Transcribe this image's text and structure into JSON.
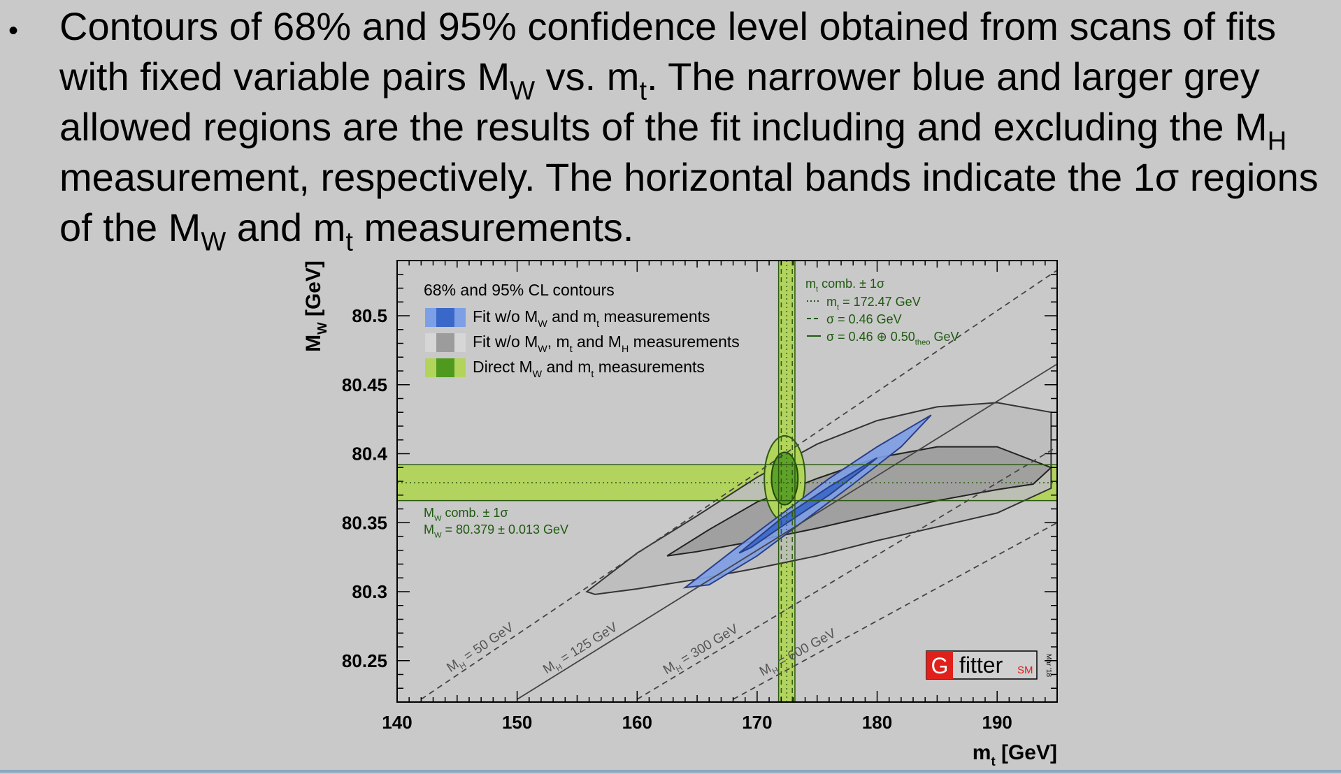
{
  "slide": {
    "bullet": "•",
    "caption": {
      "p1": "Contours of 68% and 95% confidence level obtained from scans of fits with fixed variable pairs M",
      "s1": "W",
      "p2": " vs. m",
      "s2": "t",
      "p3": ". The narrower blue and larger grey allowed regions are the results of the fit including and excluding the M",
      "s3": "H",
      "p4": " measurement, respectively. The horizontal bands indicate the 1σ regions of the M",
      "s4": "W",
      "p5": " and m",
      "s5": "t",
      "p6": " measurements."
    }
  },
  "colors": {
    "background": "#c9c9c9",
    "blue_outer": "#7d9fe6",
    "blue_inner": "#3a68c8",
    "grey_outer": "#bdbdbd",
    "grey_inner": "#9c9c9c",
    "green_light": "#b2d45a",
    "green_dark": "#4f9a1e",
    "green_text": "#1f5a10",
    "contour_line": "#2a3f8a",
    "bottom_rule": "#8aa7c2"
  },
  "chart_data": {
    "type": "contour",
    "xlabel": {
      "main": "m",
      "sub": "t",
      "unit": " [GeV]"
    },
    "ylabel": {
      "main": "M",
      "sub": "W",
      "unit": " [GeV]"
    },
    "xlim": [
      140,
      195
    ],
    "ylim": [
      80.22,
      80.54
    ],
    "x_ticks": [
      140,
      150,
      160,
      170,
      180,
      190
    ],
    "y_ticks": [
      80.25,
      80.3,
      80.35,
      80.4,
      80.45,
      80.5
    ],
    "y_tick_labels": [
      "80.25",
      "80.3",
      "80.35",
      "80.4",
      "80.45",
      "80.5"
    ],
    "legend": {
      "title": "68% and 95% CL contours",
      "entries": [
        {
          "kind": "blue",
          "parts": [
            "Fit w/o M",
            "W",
            " and m",
            "t",
            " measurements"
          ]
        },
        {
          "kind": "grey",
          "parts": [
            "Fit w/o M",
            "W",
            ", m",
            "t",
            " and M",
            "H",
            " measurements"
          ]
        },
        {
          "kind": "green",
          "parts": [
            "Direct M",
            "W",
            " and m",
            "t",
            " measurements"
          ]
        }
      ]
    },
    "mt_box": {
      "line1": [
        "m",
        "t",
        " comb. ± 1σ"
      ],
      "line2": [
        "m",
        "t",
        " = 172.47 GeV"
      ],
      "line3": "σ = 0.46 GeV",
      "line4": [
        "σ = 0.46 ⊕ 0.50",
        "theo",
        " GeV"
      ]
    },
    "mw_box": {
      "line1": [
        "M",
        "W",
        " comb. ± 1σ"
      ],
      "line2": [
        "M",
        "W",
        " = 80.379 ± 0.013 GeV"
      ]
    },
    "mt_measurement": {
      "central": 172.47,
      "sigma_exp": 0.46,
      "sigma_tot": 0.68
    },
    "mw_measurement": {
      "central": 80.379,
      "sigma": 0.013
    },
    "mh_lines": [
      {
        "label": "M",
        "sub": "H",
        "value": " = 50 GeV",
        "style": "dashed",
        "from": [
          142,
          80.222
        ],
        "to": [
          195,
          80.533
        ]
      },
      {
        "label": "M",
        "sub": "H",
        "value": " = 125 GeV",
        "style": "solid",
        "from": [
          150,
          80.222
        ],
        "to": [
          195,
          80.465
        ]
      },
      {
        "label": "M",
        "sub": "H",
        "value": " = 300 GeV",
        "style": "dashed",
        "from": [
          160,
          80.222
        ],
        "to": [
          195,
          80.405
        ]
      },
      {
        "label": "M",
        "sub": "H",
        "value": " = 600 GeV",
        "style": "dashed",
        "from": [
          168,
          80.222
        ],
        "to": [
          195,
          80.35
        ]
      }
    ],
    "contours": {
      "grey_95": [
        [
          155.8,
          80.3
        ],
        [
          160,
          80.328
        ],
        [
          165,
          80.355
        ],
        [
          170,
          80.383
        ],
        [
          175,
          80.407
        ],
        [
          180,
          80.424
        ],
        [
          185,
          80.434
        ],
        [
          190,
          80.437
        ],
        [
          194.5,
          80.43
        ],
        [
          194.5,
          80.375
        ],
        [
          190,
          80.357
        ],
        [
          185,
          80.347
        ],
        [
          180,
          80.337
        ],
        [
          175,
          80.326
        ],
        [
          170,
          80.317
        ],
        [
          165,
          80.309
        ],
        [
          160,
          80.302
        ],
        [
          156.5,
          80.298
        ]
      ],
      "grey_68": [
        [
          162.5,
          80.326
        ],
        [
          166,
          80.345
        ],
        [
          170,
          80.365
        ],
        [
          175,
          80.382
        ],
        [
          180,
          80.397
        ],
        [
          185,
          80.405
        ],
        [
          190,
          80.405
        ],
        [
          194.5,
          80.39
        ],
        [
          193,
          80.378
        ],
        [
          190,
          80.374
        ],
        [
          185,
          80.366
        ],
        [
          180,
          80.356
        ],
        [
          175,
          80.346
        ],
        [
          170,
          80.337
        ],
        [
          165,
          80.329
        ],
        [
          162.5,
          80.326
        ]
      ],
      "blue_95": [
        [
          164,
          80.303
        ],
        [
          168,
          80.33
        ],
        [
          172,
          80.356
        ],
        [
          176,
          80.382
        ],
        [
          180,
          80.405
        ],
        [
          184.5,
          80.428
        ],
        [
          182,
          80.405
        ],
        [
          178,
          80.378
        ],
        [
          174,
          80.352
        ],
        [
          170,
          80.326
        ],
        [
          166,
          80.305
        ],
        [
          164,
          80.303
        ]
      ],
      "blue_68": [
        [
          168.5,
          80.328
        ],
        [
          172,
          80.353
        ],
        [
          176,
          80.376
        ],
        [
          180,
          80.397
        ],
        [
          179,
          80.39
        ],
        [
          176,
          80.37
        ],
        [
          172,
          80.347
        ],
        [
          169.5,
          80.332
        ],
        [
          168.5,
          80.328
        ]
      ],
      "green_95": {
        "center": [
          172.3,
          80.382
        ],
        "rx": 1.7,
        "ry": 0.031
      },
      "green_68": {
        "center": [
          172.3,
          80.382
        ],
        "rx": 1.1,
        "ry": 0.019
      }
    }
  },
  "logo": {
    "g": "G",
    "fitter": "fitter",
    "sm": "SM",
    "date": "Mar '18"
  }
}
